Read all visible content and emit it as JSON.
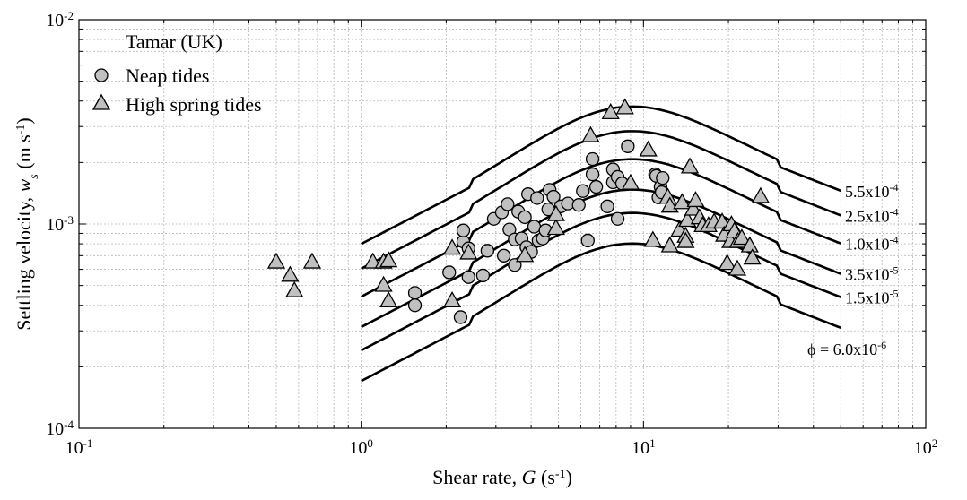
{
  "chart_data": {
    "type": "scatter",
    "title": "",
    "xlabel": "Shear rate, G (s-1)",
    "ylabel": "Settling velocity, ws (m s-1)",
    "xlabel_parts": {
      "pre": "Shear rate, ",
      "var": "G",
      "unit_open": " (s",
      "exp": "-1",
      "unit_close": ")"
    },
    "ylabel_parts": {
      "pre": "Settling velocity, ",
      "var": "w",
      "sub": "s",
      "unit_open": " (m s",
      "exp": "-1",
      "unit_close": ")"
    },
    "xscale": "log",
    "yscale": "log",
    "xlim": [
      0.1,
      100
    ],
    "ylim": [
      0.0001,
      0.01
    ],
    "grid": true,
    "legend": {
      "title": "Tamar (UK)",
      "position": "top-left",
      "entries": [
        "Neap tides",
        "High spring tides"
      ]
    },
    "x_ticks": [
      {
        "value": 0.1,
        "base": "10",
        "exp": "-1"
      },
      {
        "value": 1,
        "base": "10",
        "exp": "0"
      },
      {
        "value": 10,
        "base": "10",
        "exp": "1"
      },
      {
        "value": 100,
        "base": "10",
        "exp": "2"
      }
    ],
    "y_ticks": [
      {
        "value": 0.0001,
        "base": "10",
        "exp": "-4"
      },
      {
        "value": 0.001,
        "base": "10",
        "exp": "-3"
      },
      {
        "value": 0.01,
        "base": "10",
        "exp": "-2"
      }
    ],
    "series": [
      {
        "name": "Neap tides",
        "marker": "circle",
        "color": "#c0c0c0",
        "points": [
          [
            1.55,
            0.00046
          ],
          [
            1.55,
            0.0004
          ],
          [
            2.05,
            0.00058
          ],
          [
            2.25,
            0.00035
          ],
          [
            2.3,
            0.00082
          ],
          [
            2.3,
            0.00093
          ],
          [
            2.4,
            0.00076
          ],
          [
            2.4,
            0.00055
          ],
          [
            2.7,
            0.00056
          ],
          [
            2.8,
            0.00074
          ],
          [
            2.95,
            0.00106
          ],
          [
            3.15,
            0.00114
          ],
          [
            3.2,
            0.0007
          ],
          [
            3.3,
            0.00125
          ],
          [
            3.35,
            0.00094
          ],
          [
            3.5,
            0.00063
          ],
          [
            3.5,
            0.00084
          ],
          [
            3.6,
            0.00115
          ],
          [
            3.7,
            0.00085
          ],
          [
            3.8,
            0.00108
          ],
          [
            3.85,
            0.00077
          ],
          [
            3.9,
            0.0014
          ],
          [
            4.0,
            0.00073
          ],
          [
            4.1,
            0.00097
          ],
          [
            4.2,
            0.00134
          ],
          [
            4.25,
            0.00083
          ],
          [
            4.4,
            0.00085
          ],
          [
            4.5,
            0.00093
          ],
          [
            4.6,
            0.00118
          ],
          [
            4.65,
            0.00147
          ],
          [
            4.8,
            0.00136
          ],
          [
            5.1,
            0.00122
          ],
          [
            5.4,
            0.00126
          ],
          [
            5.9,
            0.00124
          ],
          [
            6.1,
            0.00145
          ],
          [
            6.35,
            0.00083
          ],
          [
            6.6,
            0.00208
          ],
          [
            6.6,
            0.00175
          ],
          [
            6.8,
            0.00152
          ],
          [
            7.45,
            0.00122
          ],
          [
            7.8,
            0.00185
          ],
          [
            7.8,
            0.0016
          ],
          [
            8.1,
            0.00106
          ],
          [
            8.1,
            0.0017
          ],
          [
            8.4,
            0.00158
          ],
          [
            8.8,
            0.0024
          ],
          [
            11.0,
            0.00175
          ],
          [
            11.1,
            0.00172
          ],
          [
            11.3,
            0.00135
          ],
          [
            11.5,
            0.00152
          ],
          [
            11.7,
            0.00168
          ],
          [
            11.6,
            0.00143
          ]
        ]
      },
      {
        "name": "High spring tides",
        "marker": "triangle",
        "color": "#c0c0c0",
        "points": [
          [
            0.5,
            0.00065
          ],
          [
            0.56,
            0.00056
          ],
          [
            0.58,
            0.00047
          ],
          [
            0.67,
            0.00065
          ],
          [
            1.1,
            0.00065
          ],
          [
            1.2,
            0.00065
          ],
          [
            1.25,
            0.00066
          ],
          [
            1.2,
            0.0005
          ],
          [
            1.25,
            0.00042
          ],
          [
            2.1,
            0.00076
          ],
          [
            2.1,
            0.00042
          ],
          [
            2.4,
            0.00072
          ],
          [
            3.8,
            0.0007
          ],
          [
            4.9,
            0.00095
          ],
          [
            4.9,
            0.00111
          ],
          [
            6.5,
            0.0027
          ],
          [
            7.65,
            0.0035
          ],
          [
            8.6,
            0.0037
          ],
          [
            9.0,
            0.00158
          ],
          [
            10.4,
            0.0023
          ],
          [
            10.8,
            0.00083
          ],
          [
            12.2,
            0.00135
          ],
          [
            12.4,
            0.00122
          ],
          [
            12.4,
            0.00078
          ],
          [
            13.4,
            0.00093
          ],
          [
            13.7,
            0.00127
          ],
          [
            14.1,
            0.00087
          ],
          [
            14.1,
            0.00082
          ],
          [
            14.3,
            0.00104
          ],
          [
            14.6,
            0.0019
          ],
          [
            15.0,
            0.00118
          ],
          [
            15.3,
            0.0013
          ],
          [
            15.8,
            0.00107
          ],
          [
            16.2,
            0.00098
          ],
          [
            17.0,
            0.00098
          ],
          [
            17.8,
            0.00102
          ],
          [
            19.0,
            0.00102
          ],
          [
            19.3,
            0.00088
          ],
          [
            19.8,
            0.00064
          ],
          [
            20.3,
            0.00082
          ],
          [
            20.5,
            0.00099
          ],
          [
            21.0,
            0.00092
          ],
          [
            21.5,
            0.0006
          ],
          [
            21.6,
            0.00082
          ],
          [
            22.3,
            0.00085
          ],
          [
            23.8,
            0.00078
          ],
          [
            24.3,
            0.00068
          ],
          [
            26.0,
            0.00136
          ]
        ]
      }
    ],
    "model_curves": [
      {
        "label": "5.5x10-4",
        "base": "5.5x10",
        "exp": "-4",
        "peak": 0.00375
      },
      {
        "label": "2.5x10-4",
        "base": "2.5x10",
        "exp": "-4",
        "peak": 0.00284
      },
      {
        "label": "1.0x10-4",
        "base": "1.0x10",
        "exp": "-4",
        "peak": 0.00207
      },
      {
        "label": "3.5x10-5",
        "base": "3.5x10",
        "exp": "-5",
        "peak": 0.00147
      },
      {
        "label": "1.5x10-5",
        "base": "1.5x10",
        "exp": "-5",
        "peak": 0.00113
      },
      {
        "label": "ϕ = 6.0x10-6",
        "base": "6.0x10",
        "exp": "-6",
        "prefix": "ϕ  = ",
        "peak": 0.0008
      }
    ],
    "model_curve_shape": {
      "g_min": 1.0,
      "g_peak": 8.6,
      "g_max": 50,
      "left_ratio": 0.213,
      "right_ratio": 0.388
    }
  }
}
